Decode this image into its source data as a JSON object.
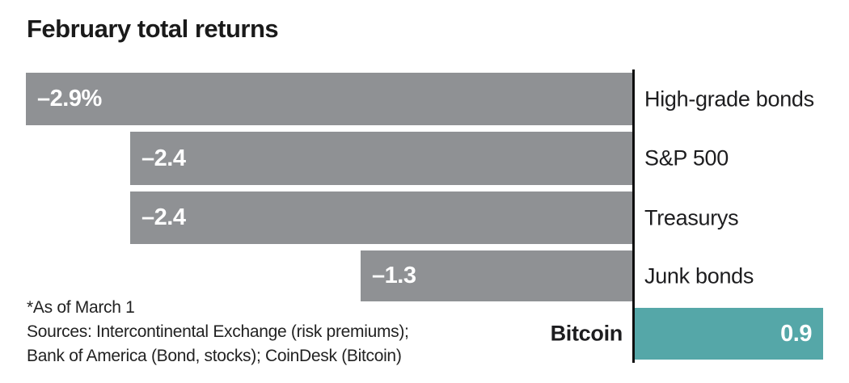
{
  "chart": {
    "title": "February total returns",
    "footnote_asof": "*As of March 1",
    "sources_line1": "Sources: Intercontinental Exchange (risk premiums);",
    "sources_line2": "Bank of America (Bond, stocks); CoinDesk (Bitcoin)"
  },
  "chart_data": {
    "type": "bar",
    "orientation": "horizontal",
    "title": "February total returns",
    "categories": [
      "High-grade bonds",
      "S&P 500",
      "Treasurys",
      "Junk bonds",
      "Bitcoin"
    ],
    "values": [
      -2.9,
      -2.4,
      -2.4,
      -1.3,
      0.9
    ],
    "value_labels": [
      "–2.9%",
      "–2.4",
      "–2.4",
      "–1.3",
      "0.9"
    ],
    "unit": "percent",
    "xlim": [
      -2.9,
      1.0
    ],
    "baseline": 0,
    "grid": false,
    "legend": false,
    "colors": {
      "negative": "#8f9194",
      "positive": "#55a7a8",
      "axis": "#0d0d0d",
      "title_text": "#1a1a1a",
      "label_text": "#1d1d1f",
      "value_text": "#ffffff"
    }
  }
}
